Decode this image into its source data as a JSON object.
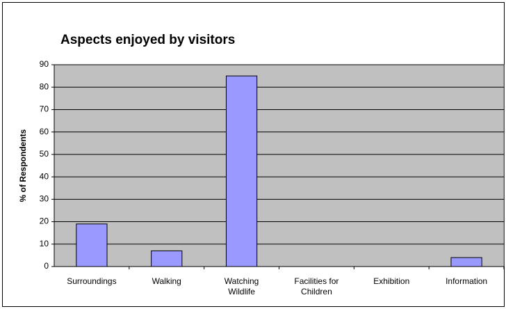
{
  "chart_data": {
    "type": "bar",
    "title": "Aspects enjoyed by visitors",
    "y_label": "% of Respondents",
    "categories": [
      "Surroundings",
      "Walking",
      "Watching Wildlife",
      "Facilities for Children",
      "Exhibition",
      "Information"
    ],
    "values": [
      19,
      7,
      85,
      0,
      0,
      4
    ],
    "color": "#9999ff",
    "ylim": [
      0,
      90
    ],
    "yticks": [
      0,
      10,
      20,
      30,
      40,
      50,
      60,
      70,
      80,
      90
    ],
    "grid": true
  }
}
